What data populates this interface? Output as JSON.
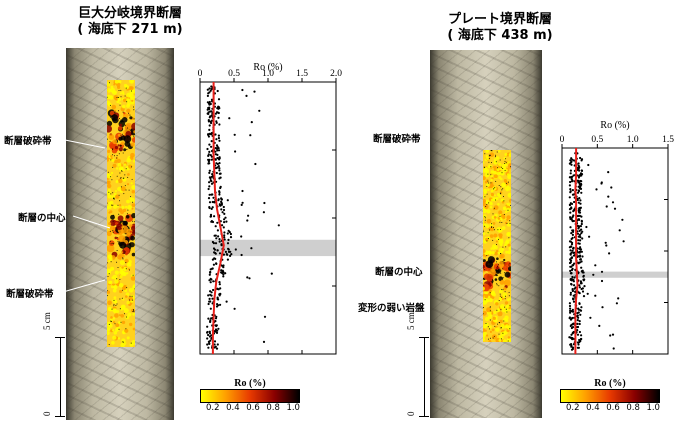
{
  "left_panel": {
    "title_line1": "巨大分岐境界断層",
    "title_line2": "( 海底下 271 m)",
    "labels": {
      "crush_zone_upper": "断層破砕帯",
      "fault_center": "断層の中心",
      "crush_zone_lower": "断層破砕帯"
    }
  },
  "right_panel": {
    "title_line1": "プレート境界断層",
    "title_line2": "( 海底下 438 m)",
    "labels": {
      "crush_zone": "断層破砕帯",
      "fault_center": "断層の中心",
      "weak_rock": "変形の弱い岩盤"
    }
  },
  "scale_bar": {
    "label_5cm": "5 cm",
    "label_0": "0"
  },
  "colorbar": {
    "title": "Ro (%)",
    "ticks": [
      "0.2",
      "0.4",
      "0.6",
      "0.8",
      "1.0"
    ],
    "colors": [
      "#ffff00",
      "#ffa000",
      "#e83a00",
      "#8a0000",
      "#000000"
    ]
  },
  "chart_data": [
    {
      "type": "scatter",
      "title": "",
      "xlabel": "Ro (%)",
      "ylabel": "",
      "xticks": [
        "0",
        "0.5",
        "1.0",
        "1.5",
        "2.0"
      ],
      "xlim": [
        0,
        2.0
      ],
      "fault_zone_band": true,
      "trend_color": "#e8201a",
      "trend": [
        0.2,
        0.2,
        0.2,
        0.2,
        0.2,
        0.21,
        0.22,
        0.25,
        0.3,
        0.35,
        0.3,
        0.24,
        0.21,
        0.2,
        0.19,
        0.19
      ]
    },
    {
      "type": "scatter",
      "title": "",
      "xlabel": "Ro (%)",
      "ylabel": "",
      "xticks": [
        "0",
        "0.5",
        "1.0",
        "1.5"
      ],
      "xlim": [
        0,
        1.5
      ],
      "fault_zone_band": true,
      "trend_color": "#e8201a",
      "trend": [
        0.2,
        0.2,
        0.2,
        0.19,
        0.2,
        0.2,
        0.2,
        0.2,
        0.2,
        0.21,
        0.22,
        0.2,
        0.19,
        0.19,
        0.19,
        0.19
      ]
    }
  ]
}
